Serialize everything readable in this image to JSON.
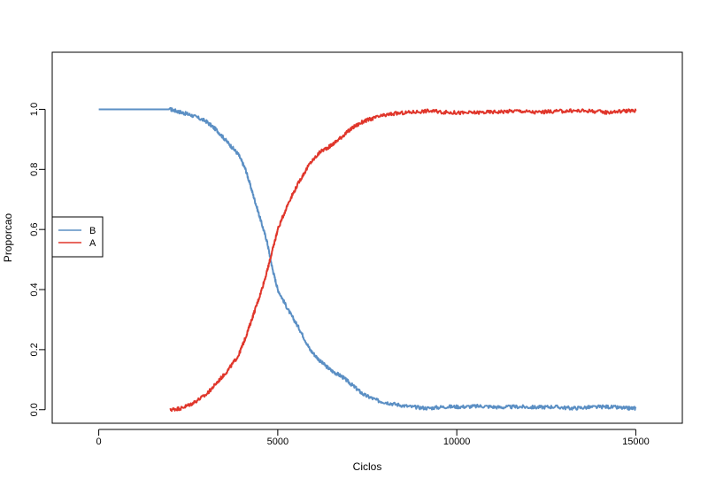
{
  "chart_data": {
    "type": "line",
    "title": "",
    "xlabel": "Ciclos",
    "ylabel": "Proporcao",
    "xlim": [
      -1300,
      16300
    ],
    "ylim": [
      -0.045,
      1.19
    ],
    "xticks": [
      0,
      5000,
      10000,
      15000
    ],
    "xtick_labels": [
      "0",
      "5000",
      "10000",
      "15000"
    ],
    "yticks": [
      0.0,
      0.2,
      0.4,
      0.6,
      0.8,
      1.0
    ],
    "ytick_labels": [
      "0.0",
      "0.2",
      "0.4",
      "0.6",
      "0.8",
      "1.0"
    ],
    "grid": false,
    "legend_position": "left",
    "series": [
      {
        "name": "B",
        "color": "#5b8fc4",
        "x": [
          0,
          1000,
          2000,
          2300,
          2600,
          3000,
          3300,
          3600,
          3900,
          4100,
          4300,
          4500,
          4700,
          4850,
          5000,
          5300,
          5600,
          5900,
          6200,
          6500,
          6800,
          7100,
          7400,
          7800,
          8200,
          8700,
          9200,
          9700,
          10200,
          10700,
          11200,
          11700,
          12200,
          12700,
          13200,
          13700,
          14200,
          14700,
          15000
        ],
        "y": [
          1.0,
          1.0,
          1.0,
          0.99,
          0.98,
          0.96,
          0.93,
          0.89,
          0.85,
          0.8,
          0.72,
          0.64,
          0.56,
          0.47,
          0.4,
          0.33,
          0.27,
          0.2,
          0.16,
          0.13,
          0.11,
          0.08,
          0.05,
          0.03,
          0.02,
          0.01,
          0.005,
          0.01,
          0.01,
          0.012,
          0.008,
          0.01,
          0.008,
          0.01,
          0.005,
          0.008,
          0.01,
          0.005,
          0.005
        ]
      },
      {
        "name": "A",
        "color": "#e0362b",
        "x": [
          2000,
          2300,
          2600,
          3000,
          3300,
          3600,
          3900,
          4100,
          4300,
          4500,
          4700,
          4850,
          5000,
          5300,
          5600,
          5900,
          6200,
          6500,
          6800,
          7100,
          7400,
          7800,
          8200,
          8700,
          9200,
          9700,
          10200,
          10700,
          11200,
          11700,
          12200,
          12700,
          13200,
          13700,
          14200,
          14700,
          15000
        ],
        "y": [
          0.0,
          0.005,
          0.02,
          0.05,
          0.09,
          0.13,
          0.18,
          0.24,
          0.31,
          0.38,
          0.46,
          0.53,
          0.6,
          0.69,
          0.76,
          0.82,
          0.86,
          0.88,
          0.91,
          0.94,
          0.96,
          0.975,
          0.985,
          0.99,
          0.995,
          0.99,
          0.988,
          0.99,
          0.992,
          0.995,
          0.99,
          0.993,
          0.995,
          0.995,
          0.99,
          0.995,
          0.995
        ]
      }
    ]
  }
}
